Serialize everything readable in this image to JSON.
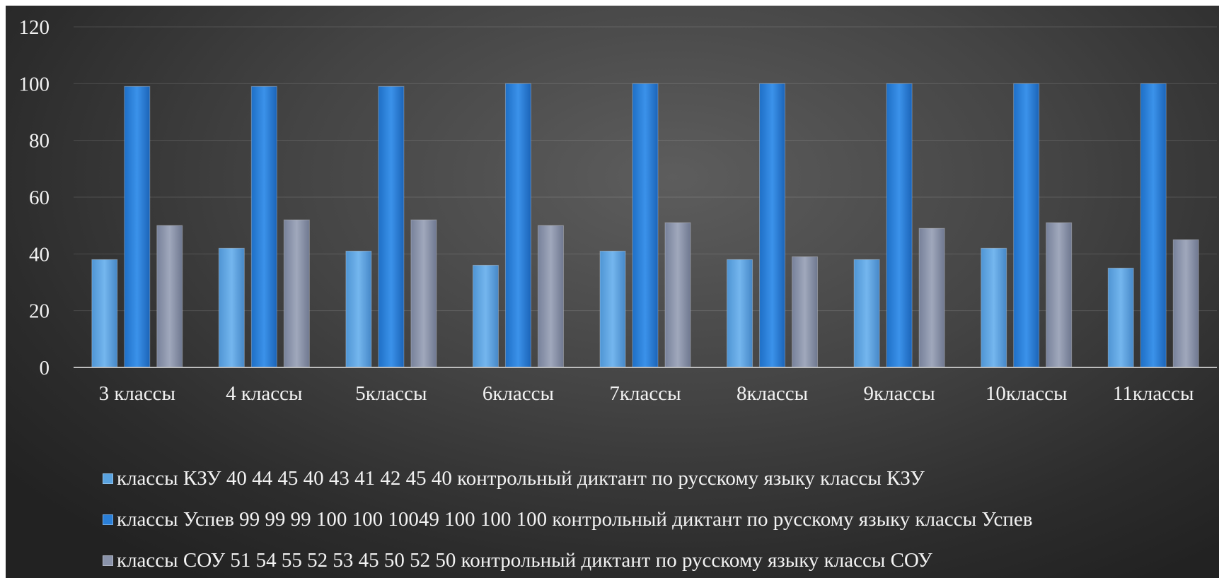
{
  "chart_data": {
    "type": "bar",
    "categories": [
      "3 классы",
      "4 классы",
      "5классы",
      "6классы",
      "7классы",
      "8классы",
      "9классы",
      "10классы",
      "11классы"
    ],
    "series": [
      {
        "name": "классы КЗУ 40 44 45 40 43 41 42 45 40 контрольный диктант по русскому языку  классы КЗУ",
        "values": [
          38,
          42,
          41,
          36,
          41,
          38,
          38,
          42,
          35
        ],
        "color": "#5aa3e0"
      },
      {
        "name": "классы Успев 99 99 99 100 100 10049 100 100 100 контрольный диктант по русскому языку  классы Успев",
        "values": [
          99,
          99,
          99,
          100,
          100,
          100,
          100,
          100,
          100
        ],
        "color": "#2a7fd8"
      },
      {
        "name": "классы СОУ 51 54 55 52 53 45 50 52 50 контрольный диктант по русскому языку  классы СОУ",
        "values": [
          50,
          52,
          52,
          50,
          51,
          39,
          49,
          51,
          45
        ],
        "color": "#8a93aa"
      }
    ],
    "yticks": [
      "0",
      "20",
      "40",
      "60",
      "80",
      "100",
      "120"
    ],
    "ylim": [
      0,
      120
    ],
    "grid": true,
    "legend_position": "bottom",
    "title": "",
    "xlabel": "",
    "ylabel": ""
  }
}
